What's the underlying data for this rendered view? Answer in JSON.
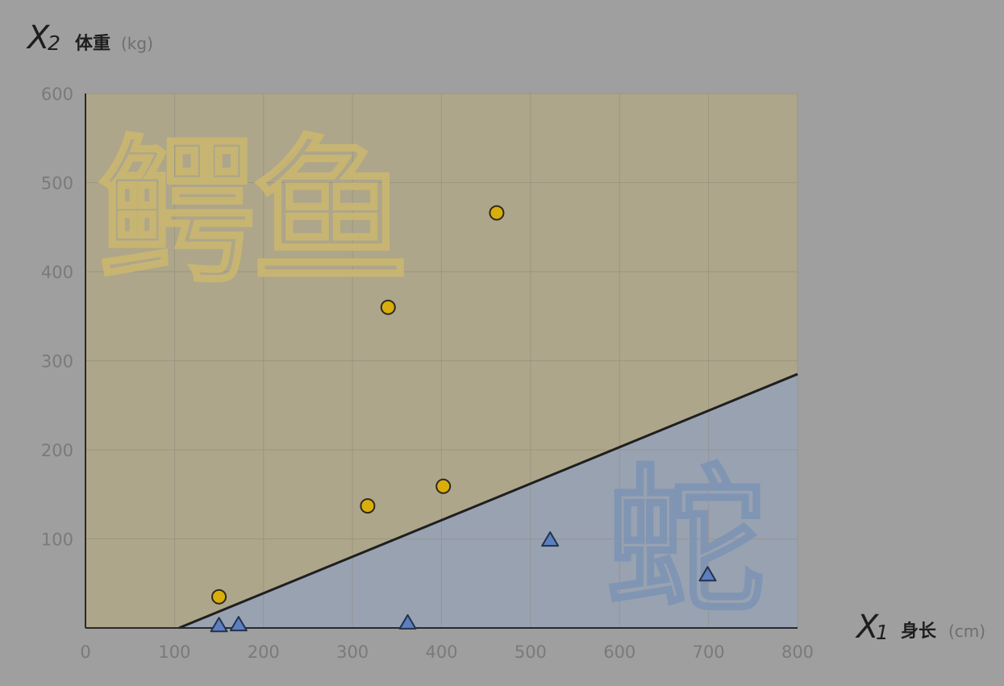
{
  "chart_data": {
    "type": "scatter",
    "x_axis": {
      "symbol": "X",
      "subscript": "1",
      "label": "身长",
      "unit": "(cm)"
    },
    "y_axis": {
      "symbol": "X",
      "subscript": "2",
      "label": "体重",
      "unit": "(kg)"
    },
    "xlim": [
      0,
      800
    ],
    "ylim": [
      0,
      600
    ],
    "x_ticks": [
      "0",
      "100",
      "200",
      "300",
      "400",
      "500",
      "600",
      "700",
      "800"
    ],
    "y_ticks": [
      "100",
      "200",
      "300",
      "400",
      "500",
      "600"
    ],
    "grid": true,
    "series": [
      {
        "name": "鳄鱼",
        "marker": "circle",
        "color": "#d9ae0c",
        "points": [
          [
            150,
            35
          ],
          [
            317,
            137
          ],
          [
            340,
            360
          ],
          [
            402,
            159
          ],
          [
            462,
            466
          ]
        ]
      },
      {
        "name": "蛇",
        "marker": "triangle",
        "color": "#5b7fc0",
        "points": [
          [
            150,
            2
          ],
          [
            172,
            3
          ],
          [
            362,
            5
          ],
          [
            522,
            98
          ],
          [
            699,
            59
          ]
        ]
      }
    ],
    "decision_boundary": {
      "x": [
        105,
        800
      ],
      "y": [
        0,
        285
      ]
    },
    "region_colors": {
      "above": "#aea68a",
      "below": "#99a2b1"
    },
    "annotations": [
      {
        "text": "鳄鱼",
        "region": "above"
      },
      {
        "text": "蛇",
        "region": "below"
      }
    ]
  }
}
